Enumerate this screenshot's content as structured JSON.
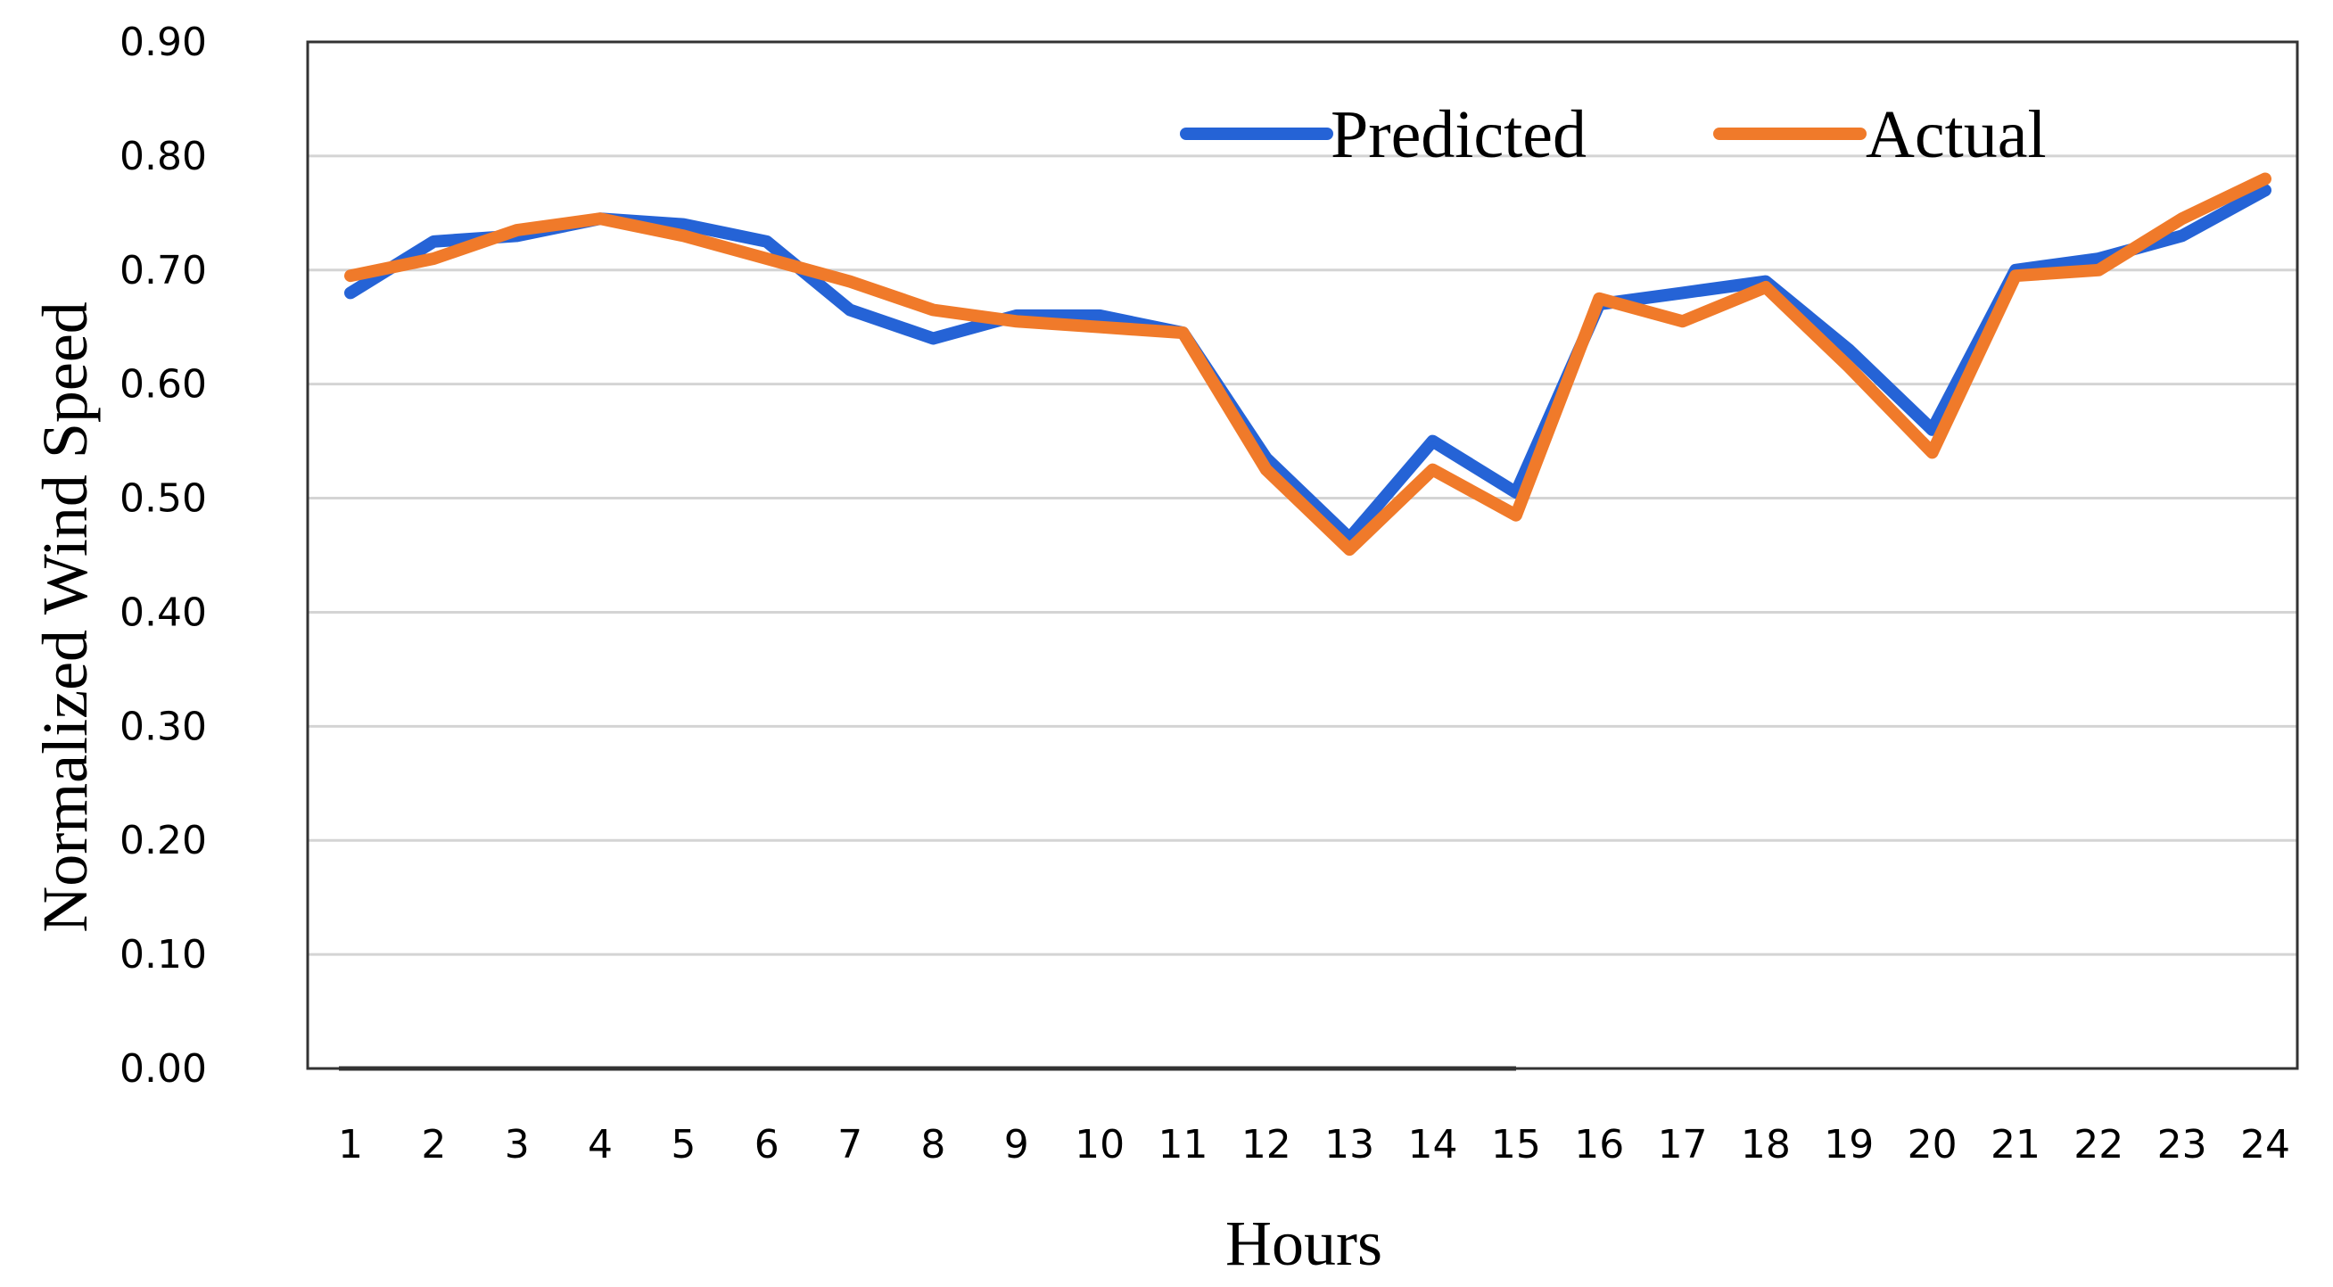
{
  "chart_data": {
    "type": "line",
    "title": "",
    "xlabel": "Hours",
    "ylabel": "Normalized Wind Speed",
    "categories": [
      "1",
      "2",
      "3",
      "4",
      "5",
      "6",
      "7",
      "8",
      "9",
      "10",
      "11",
      "12",
      "13",
      "14",
      "15",
      "16",
      "17",
      "18",
      "19",
      "20",
      "21",
      "22",
      "23",
      "24"
    ],
    "ylim": [
      0,
      0.9
    ],
    "yticks": [
      "0.00",
      "0.10",
      "0.20",
      "0.30",
      "0.40",
      "0.50",
      "0.60",
      "0.70",
      "0.80",
      "0.90"
    ],
    "grid": true,
    "legend_position": "top-right",
    "series": [
      {
        "name": "Predicted",
        "color": "#2563d6",
        "values": [
          0.68,
          0.725,
          0.73,
          0.745,
          0.74,
          0.725,
          0.665,
          0.64,
          0.66,
          0.66,
          0.645,
          0.535,
          0.465,
          0.55,
          0.505,
          0.67,
          0.68,
          0.69,
          0.63,
          0.56,
          0.7,
          0.71,
          0.73,
          0.77
        ]
      },
      {
        "name": "Actual",
        "color": "#f07a2a",
        "values": [
          0.695,
          0.71,
          0.735,
          0.745,
          0.73,
          0.71,
          0.69,
          0.665,
          0.655,
          0.65,
          0.645,
          0.525,
          0.455,
          0.525,
          0.485,
          0.675,
          0.655,
          0.685,
          0.615,
          0.54,
          0.695,
          0.7,
          0.745,
          0.78
        ]
      }
    ]
  }
}
